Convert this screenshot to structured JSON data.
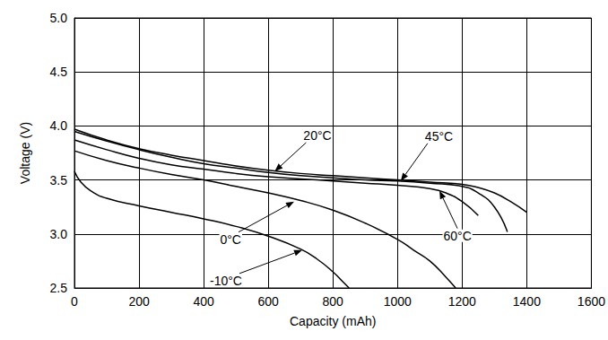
{
  "chart_data": {
    "type": "line",
    "x_label": "Capacity (mAh)",
    "y_label": "Voltage (V)",
    "xlim": [
      0,
      1600
    ],
    "xticks": [
      0,
      200,
      400,
      600,
      800,
      1000,
      1200,
      1400,
      1600
    ],
    "ylim": [
      2.5,
      5.0
    ],
    "yticks": [
      2.5,
      {
        "value": 3.0,
        "label": "3.0"
      },
      3.5,
      {
        "value": 4.0,
        "label": "4.0"
      },
      4.5,
      {
        "value": 5.0,
        "label": "5.0"
      }
    ],
    "grid": true,
    "color": "#000000",
    "series": [
      {
        "name": "20°C",
        "x": [
          0,
          100,
          200,
          300,
          400,
          500,
          600,
          700,
          800,
          900,
          1000,
          1100,
          1200,
          1250,
          1300,
          1350,
          1400
        ],
        "values": [
          3.97,
          3.87,
          3.79,
          3.73,
          3.68,
          3.63,
          3.59,
          3.56,
          3.54,
          3.52,
          3.5,
          3.48,
          3.46,
          3.43,
          3.38,
          3.3,
          3.2
        ]
      },
      {
        "name": "45°C",
        "x": [
          0,
          100,
          200,
          300,
          400,
          500,
          600,
          700,
          800,
          900,
          1000,
          1100,
          1200,
          1250,
          1300,
          1340
        ],
        "values": [
          3.95,
          3.86,
          3.78,
          3.71,
          3.65,
          3.61,
          3.57,
          3.54,
          3.52,
          3.5,
          3.49,
          3.47,
          3.44,
          3.38,
          3.25,
          3.02
        ]
      },
      {
        "name": "60°C",
        "x": [
          0,
          100,
          200,
          300,
          400,
          500,
          600,
          700,
          800,
          900,
          1000,
          1100,
          1150,
          1200,
          1250
        ],
        "values": [
          3.87,
          3.78,
          3.7,
          3.64,
          3.6,
          3.56,
          3.53,
          3.51,
          3.49,
          3.47,
          3.45,
          3.42,
          3.38,
          3.3,
          3.17
        ]
      },
      {
        "name": "0°C",
        "x": [
          0,
          100,
          200,
          300,
          400,
          500,
          600,
          700,
          800,
          900,
          1000,
          1050,
          1100,
          1150,
          1180
        ],
        "values": [
          3.77,
          3.68,
          3.61,
          3.55,
          3.5,
          3.44,
          3.38,
          3.31,
          3.22,
          3.1,
          2.95,
          2.85,
          2.75,
          2.6,
          2.5
        ]
      },
      {
        "name": "-10°C",
        "x": [
          0,
          20,
          50,
          100,
          200,
          300,
          400,
          500,
          600,
          700,
          750,
          800,
          830,
          850
        ],
        "values": [
          3.58,
          3.48,
          3.4,
          3.33,
          3.26,
          3.2,
          3.14,
          3.07,
          2.98,
          2.86,
          2.77,
          2.65,
          2.56,
          2.5
        ]
      }
    ],
    "annotations": [
      {
        "text": "20°C",
        "x": 620,
        "y": 3.58
      },
      {
        "text": "45°C",
        "x": 1010,
        "y": 3.49
      },
      {
        "text": "60°C",
        "x": 1130,
        "y": 3.4
      },
      {
        "text": "0°C",
        "x": 680,
        "y": 3.3
      },
      {
        "text": "-10°C",
        "x": 705,
        "y": 2.85
      }
    ]
  }
}
